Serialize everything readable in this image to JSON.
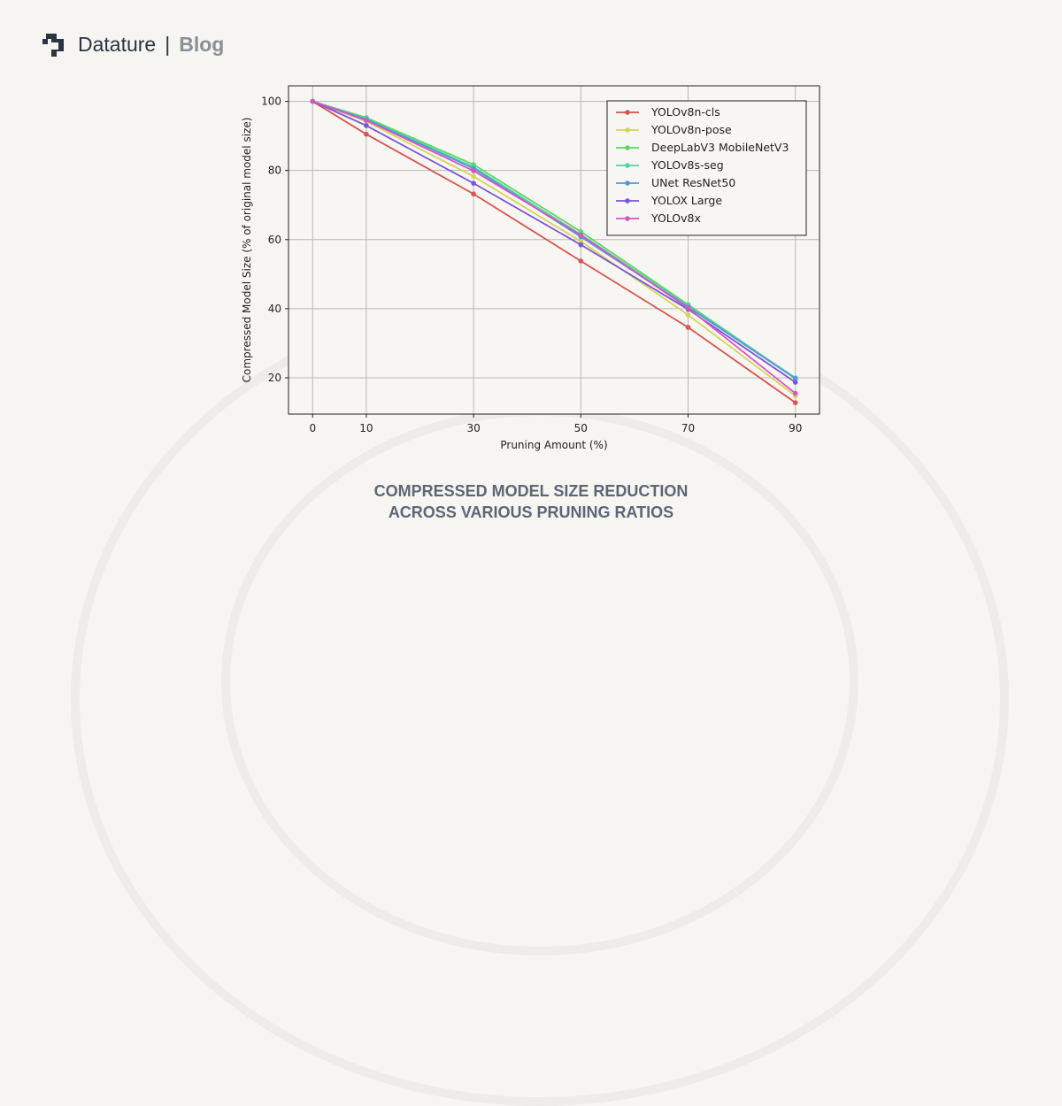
{
  "brand": {
    "name": "Datature",
    "separator": "|",
    "section": "Blog"
  },
  "caption": {
    "line1": "COMPRESSED MODEL SIZE REDUCTION",
    "line2": "ACROSS VARIOUS PRUNING RATIOS"
  },
  "chart_data": {
    "type": "line",
    "title": "",
    "xlabel": "Pruning Amount (%)",
    "ylabel": "Compressed Model Size (% of original model size)",
    "x": [
      0,
      10,
      30,
      50,
      70,
      90
    ],
    "xticks": [
      0,
      10,
      30,
      50,
      70,
      90
    ],
    "yticks": [
      20,
      40,
      60,
      80,
      100
    ],
    "xlim": [
      -4.5,
      94.5
    ],
    "ylim": [
      9.5,
      104.5
    ],
    "grid": true,
    "legend": "top-right",
    "series": [
      {
        "name": "YOLOv8n-cls",
        "color": "#d9534f",
        "values": [
          100,
          90.5,
          73.2,
          53.8,
          34.6,
          12.8
        ]
      },
      {
        "name": "YOLOv8n-pose",
        "color": "#d4d45a",
        "values": [
          100,
          94.2,
          78.3,
          59.5,
          38.2,
          14.8
        ]
      },
      {
        "name": "DeepLabV3 MobileNetV3",
        "color": "#5fd65f",
        "values": [
          100,
          95.3,
          81.7,
          62.3,
          41.2,
          19.8
        ]
      },
      {
        "name": "YOLOv8s-seg",
        "color": "#4fd6a6",
        "values": [
          100,
          95.0,
          81.0,
          61.5,
          40.8,
          20.0
        ]
      },
      {
        "name": "UNet ResNet50",
        "color": "#4f9ad6",
        "values": [
          100,
          94.8,
          80.6,
          60.8,
          40.5,
          19.8
        ]
      },
      {
        "name": "YOLOX Large",
        "color": "#7a55d9",
        "values": [
          100,
          93.0,
          76.3,
          58.5,
          39.8,
          18.7
        ]
      },
      {
        "name": "YOLOv8x",
        "color": "#d655c8",
        "values": [
          100,
          94.5,
          79.9,
          61.3,
          40.2,
          15.5
        ]
      }
    ]
  }
}
